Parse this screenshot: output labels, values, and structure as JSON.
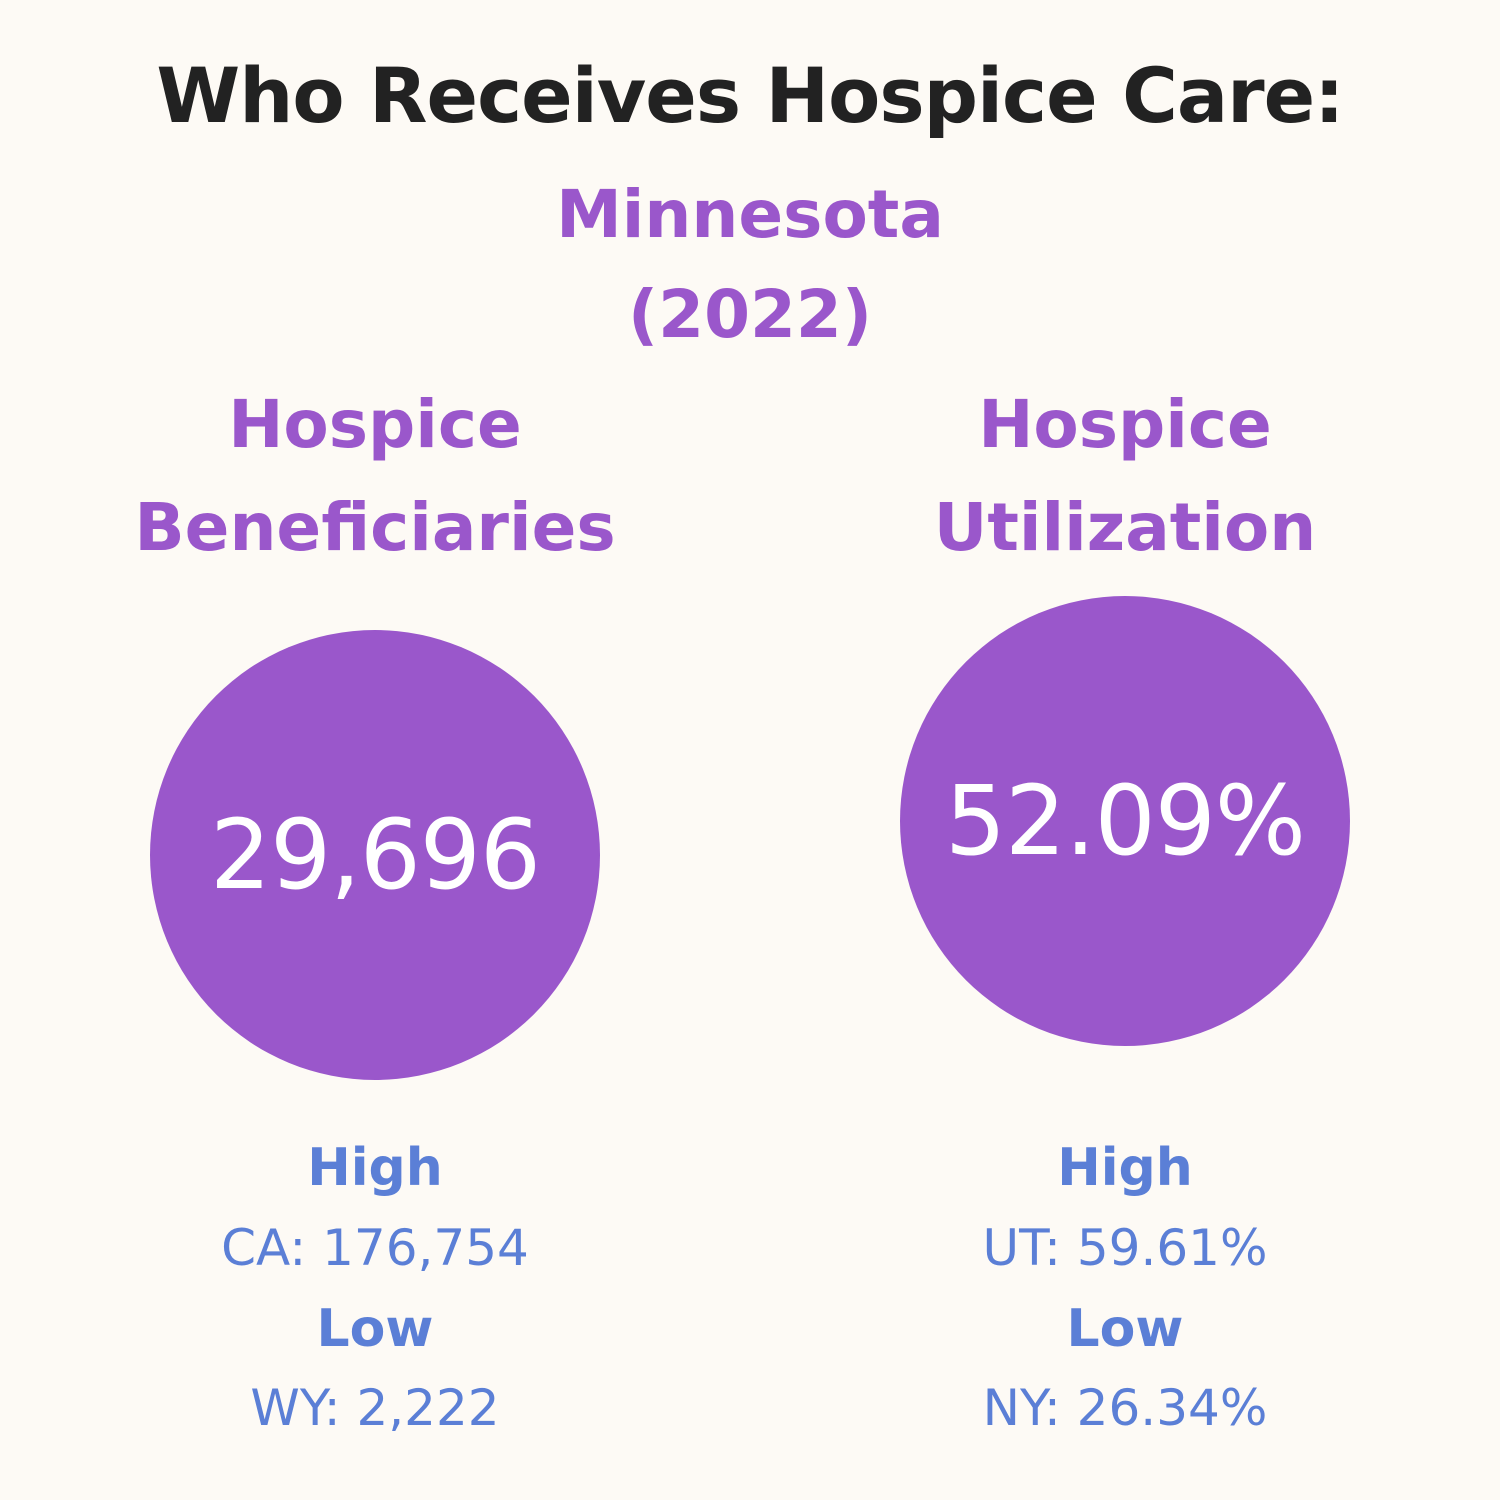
{
  "title": "Who Receives Hospice Care:",
  "state": "Minnesota",
  "year": "(2022)",
  "metrics": [
    {
      "heading_line1": "Hospice",
      "heading_line2": "Beneficiaries",
      "value": "29,696",
      "high_label": "High",
      "high_value": "CA: 176,754",
      "low_label": "Low",
      "low_value": "WY: 2,222"
    },
    {
      "heading_line1": "Hospice",
      "heading_line2": "Utilization",
      "value": "52.09%",
      "high_label": "High",
      "high_value": "UT: 59.61%",
      "low_label": "Low",
      "low_value": "NY: 26.34%"
    }
  ],
  "colors": {
    "background": "#fdfaf5",
    "title": "#222222",
    "accent_purple": "#9a57cb",
    "range_blue": "#5b7fd6",
    "circle_text": "#ffffff"
  }
}
